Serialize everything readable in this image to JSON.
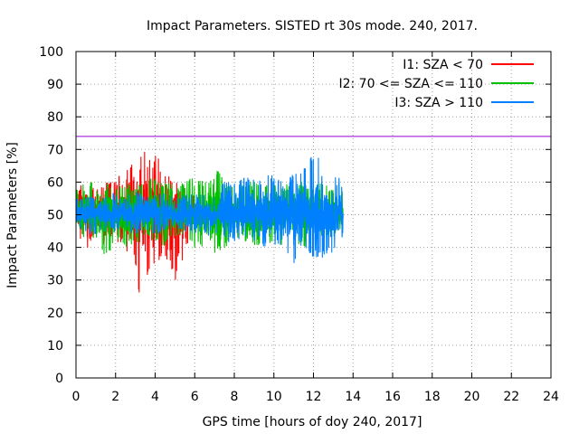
{
  "chart_data": {
    "type": "line",
    "title": "Impact Parameters. SISTED rt 30s mode. 240, 2017.",
    "xlabel": "GPS time [hours of doy 240, 2017]",
    "ylabel": "Impact Parameters [%]",
    "xlim": [
      0,
      24
    ],
    "ylim": [
      0,
      100
    ],
    "xticks": [
      "0",
      "2",
      "4",
      "6",
      "8",
      "10",
      "12",
      "14",
      "16",
      "18",
      "20",
      "22",
      "24"
    ],
    "yticks": [
      "0",
      "10",
      "20",
      "30",
      "40",
      "50",
      "60",
      "70",
      "80",
      "90",
      "100"
    ],
    "grid": true,
    "legend_position": "top-right",
    "reference_line": {
      "y": 74,
      "color": "#9400d3"
    },
    "series": [
      {
        "name": "I1: SZA < 70",
        "color": "#ff0000",
        "x": [
          0.0,
          0.1,
          0.2,
          0.4,
          0.6,
          0.8,
          1.0,
          1.2,
          1.4,
          1.6,
          1.8,
          2.0,
          2.2,
          2.4,
          2.6,
          2.8,
          3.0,
          3.2,
          3.4,
          3.6,
          3.8,
          4.0,
          4.2,
          4.4,
          4.6,
          4.8,
          5.0,
          5.2,
          5.4,
          5.6,
          5.8,
          6.0
        ],
        "mean": [
          50,
          52,
          55,
          52,
          50,
          53,
          51,
          50,
          52,
          51,
          50,
          52,
          51,
          50,
          51,
          52,
          52,
          53,
          51,
          52,
          51,
          52,
          52,
          51,
          50,
          51,
          52,
          51,
          50,
          51,
          50,
          50
        ],
        "min": [
          48,
          46,
          42,
          44,
          39,
          43,
          45,
          44,
          40,
          44,
          42,
          44,
          40,
          43,
          38,
          41,
          35,
          25,
          38,
          30,
          37,
          33,
          36,
          37,
          35,
          34,
          29,
          38,
          35,
          40,
          43,
          44
        ],
        "max": [
          55,
          56,
          60,
          58,
          57,
          59,
          58,
          59,
          62,
          60,
          60,
          62,
          63,
          60,
          65,
          66,
          68,
          66,
          70,
          72,
          65,
          68,
          69,
          68,
          65,
          60,
          66,
          64,
          60,
          59,
          57,
          56
        ]
      },
      {
        "name": "I2: 70 <= SZA <= 110",
        "color": "#00c000",
        "x": [
          0.0,
          0.5,
          1.0,
          1.5,
          2.0,
          2.5,
          3.0,
          3.5,
          4.0,
          4.5,
          5.0,
          5.5,
          6.0,
          6.5,
          7.0,
          7.5,
          8.0,
          8.5,
          9.0,
          9.5,
          10.0,
          10.5,
          11.0,
          11.5,
          12.0,
          12.5,
          13.0,
          13.5
        ],
        "mean": [
          50,
          51,
          50,
          51,
          50,
          51,
          50,
          50,
          51,
          50,
          50,
          51,
          50,
          50,
          51,
          50,
          50,
          51,
          50,
          50,
          51,
          50,
          50,
          50,
          50,
          51,
          50,
          50
        ],
        "min": [
          44,
          42,
          43,
          36,
          42,
          40,
          41,
          43,
          42,
          40,
          43,
          42,
          40,
          40,
          38,
          40,
          41,
          42,
          40,
          41,
          41,
          40,
          42,
          40,
          41,
          43,
          42,
          44
        ],
        "max": [
          58,
          61,
          59,
          60,
          59,
          60,
          58,
          62,
          61,
          60,
          59,
          60,
          62,
          60,
          65,
          61,
          60,
          59,
          61,
          60,
          60,
          59,
          60,
          60,
          59,
          60,
          58,
          57
        ]
      },
      {
        "name": "I3: SZA > 110",
        "color": "#0080ff",
        "x": [
          0.0,
          0.5,
          1.0,
          1.5,
          2.0,
          2.5,
          3.0,
          3.5,
          4.0,
          4.5,
          5.0,
          5.5,
          6.0,
          6.5,
          7.0,
          7.5,
          8.0,
          8.5,
          9.0,
          9.5,
          10.0,
          10.5,
          11.0,
          11.5,
          12.0,
          12.5,
          13.0,
          13.5
        ],
        "mean": [
          50,
          50,
          51,
          50,
          50,
          51,
          50,
          50,
          51,
          50,
          50,
          50,
          51,
          50,
          50,
          51,
          50,
          50,
          51,
          50,
          50,
          50,
          51,
          50,
          50,
          51,
          50,
          50
        ],
        "min": [
          45,
          44,
          44,
          45,
          44,
          45,
          43,
          44,
          44,
          45,
          44,
          45,
          44,
          43,
          44,
          42,
          41,
          43,
          42,
          40,
          41,
          40,
          35,
          40,
          36,
          37,
          38,
          43
        ],
        "max": [
          56,
          56,
          55,
          56,
          57,
          56,
          57,
          56,
          56,
          57,
          56,
          56,
          57,
          56,
          56,
          60,
          60,
          62,
          61,
          62,
          62,
          60,
          63,
          64,
          69,
          66,
          63,
          60
        ]
      }
    ]
  }
}
